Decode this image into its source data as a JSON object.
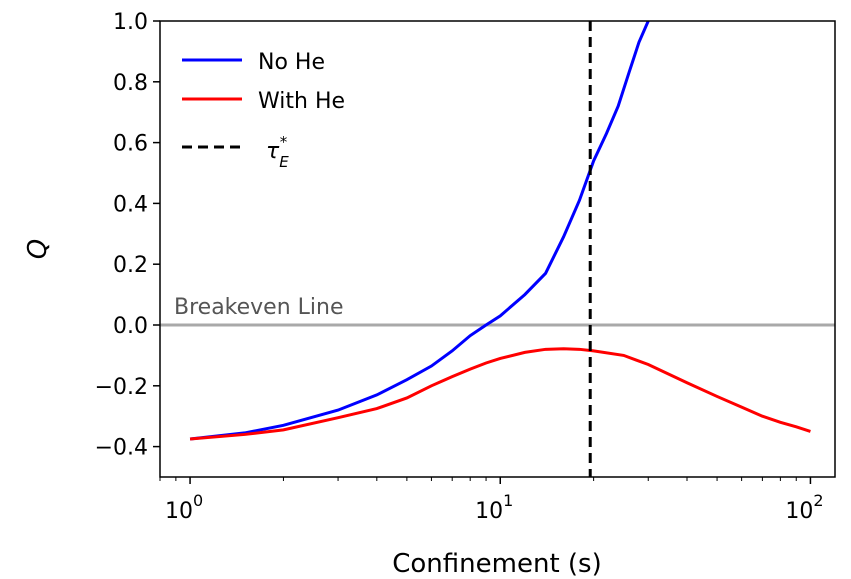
{
  "chart_data": {
    "type": "line",
    "xlabel": "Confinement (s)",
    "ylabel": "Q",
    "xscale": "log",
    "xlim": [
      0.8,
      120
    ],
    "ylim": [
      -0.5,
      1.0
    ],
    "yticks": [
      -0.4,
      -0.2,
      0.0,
      0.2,
      0.4,
      0.6,
      0.8,
      1.0
    ],
    "ytick_labels": [
      "−0.4",
      "−0.2",
      "0.0",
      "0.2",
      "0.4",
      "0.6",
      "0.8",
      "1.0"
    ],
    "xticks": [
      {
        "value": 1,
        "base": "10",
        "exp": "0"
      },
      {
        "value": 10,
        "base": "10",
        "exp": "1"
      },
      {
        "value": 100,
        "base": "10",
        "exp": "2"
      }
    ],
    "legend_position": "top-left",
    "grid": false,
    "series": [
      {
        "name": "No He",
        "color": "#0000ff",
        "style": "solid",
        "x": [
          1,
          1.5,
          2,
          3,
          4,
          5,
          6,
          7,
          8,
          9,
          10,
          12,
          14,
          16,
          18,
          20,
          22,
          24,
          26,
          28,
          30
        ],
        "y": [
          -0.375,
          -0.355,
          -0.33,
          -0.28,
          -0.23,
          -0.18,
          -0.135,
          -0.085,
          -0.035,
          0.0,
          0.03,
          0.1,
          0.17,
          0.29,
          0.41,
          0.54,
          0.63,
          0.72,
          0.83,
          0.93,
          1.0
        ]
      },
      {
        "name": "With He",
        "color": "#ff0000",
        "style": "solid",
        "x": [
          1,
          1.5,
          2,
          3,
          4,
          5,
          6,
          7,
          8,
          9,
          10,
          12,
          14,
          16,
          18,
          20,
          25,
          30,
          40,
          50,
          60,
          70,
          80,
          90,
          100
        ],
        "y": [
          -0.375,
          -0.36,
          -0.345,
          -0.305,
          -0.275,
          -0.24,
          -0.2,
          -0.17,
          -0.145,
          -0.125,
          -0.11,
          -0.09,
          -0.08,
          -0.078,
          -0.08,
          -0.085,
          -0.1,
          -0.13,
          -0.19,
          -0.235,
          -0.27,
          -0.3,
          -0.32,
          -0.335,
          -0.35
        ]
      }
    ],
    "vertical_line": {
      "name": "τ",
      "sub": "E",
      "sup": "*",
      "x": 19.5,
      "color": "#000000",
      "style": "dashed"
    },
    "horizontal_line": {
      "label": "Breakeven Line",
      "y": 0.0,
      "color": "#a9a9a9"
    }
  }
}
